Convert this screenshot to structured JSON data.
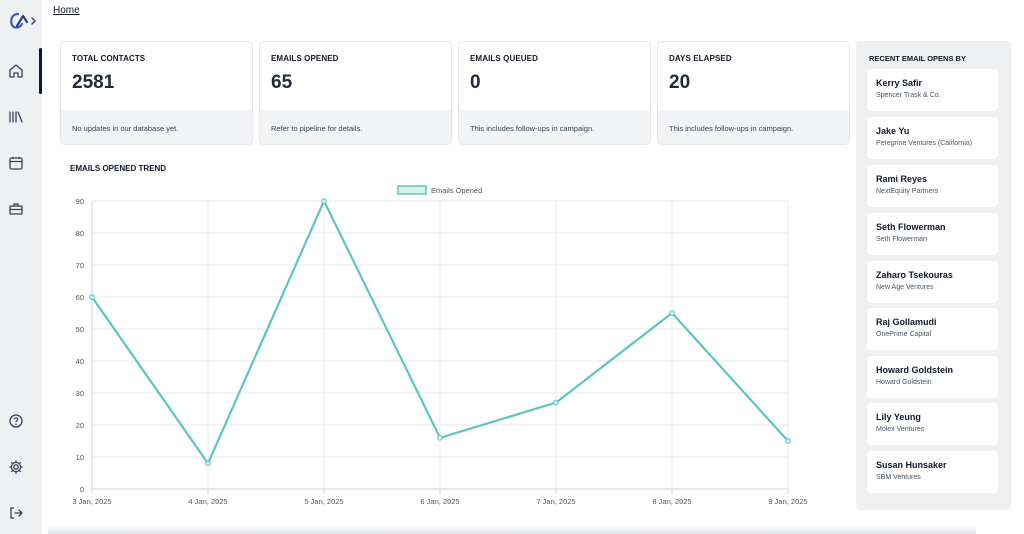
{
  "breadcrumb": "Home",
  "nav": {
    "items": [
      "home-icon",
      "library-icon",
      "calendar-icon",
      "briefcase-icon"
    ],
    "bottom": [
      "help-icon",
      "settings-icon",
      "logout-icon"
    ]
  },
  "stats": [
    {
      "label": "TOTAL CONTACTS",
      "value": "2581",
      "note": "No updates in our database yet."
    },
    {
      "label": "EMAILS OPENED",
      "value": "65",
      "note": "Refer to pipeline for details."
    },
    {
      "label": "EMAILS QUEUED",
      "value": "0",
      "note": "This includes follow-ups in campaign."
    },
    {
      "label": "DAYS ELAPSED",
      "value": "20",
      "note": "This includes follow-ups in campaign."
    }
  ],
  "chart_title": "EMAILS OPENED TREND",
  "chart_data": {
    "type": "line",
    "x": [
      "3 Jan, 2025",
      "4 Jan, 2025",
      "5 Jan, 2025",
      "6 Jan, 2025",
      "7 Jan, 2025",
      "8 Jan, 2025",
      "9 Jan, 2025"
    ],
    "series": [
      {
        "name": "Emails Opened",
        "values": [
          60,
          8,
          90,
          16,
          27,
          55,
          15
        ]
      }
    ],
    "yticks": [
      0,
      10,
      20,
      30,
      40,
      50,
      60,
      70,
      80,
      90
    ],
    "ylim": [
      0,
      90
    ],
    "grid": true,
    "legend": "top-center",
    "color": "#5ec4c1"
  },
  "recent": {
    "title": "RECENT EMAIL OPENS BY",
    "items": [
      {
        "name": "Kerry Safir",
        "company": "Spencer Trask & Co."
      },
      {
        "name": "Jake Yu",
        "company": "Peregrine Ventures (California)"
      },
      {
        "name": "Rami Reyes",
        "company": "NextEquity Partners"
      },
      {
        "name": "Seth Flowerman",
        "company": "Seth Flowerman"
      },
      {
        "name": "Zaharo Tsekouras",
        "company": "New Age Ventures"
      },
      {
        "name": "Raj Gollamudi",
        "company": "OnePrime Capital"
      },
      {
        "name": "Howard Goldstein",
        "company": "Howard Goldstein"
      },
      {
        "name": "Lily Yeung",
        "company": "Molex Ventures"
      },
      {
        "name": "Susan Hunsaker",
        "company": "SBM Ventures"
      }
    ]
  }
}
